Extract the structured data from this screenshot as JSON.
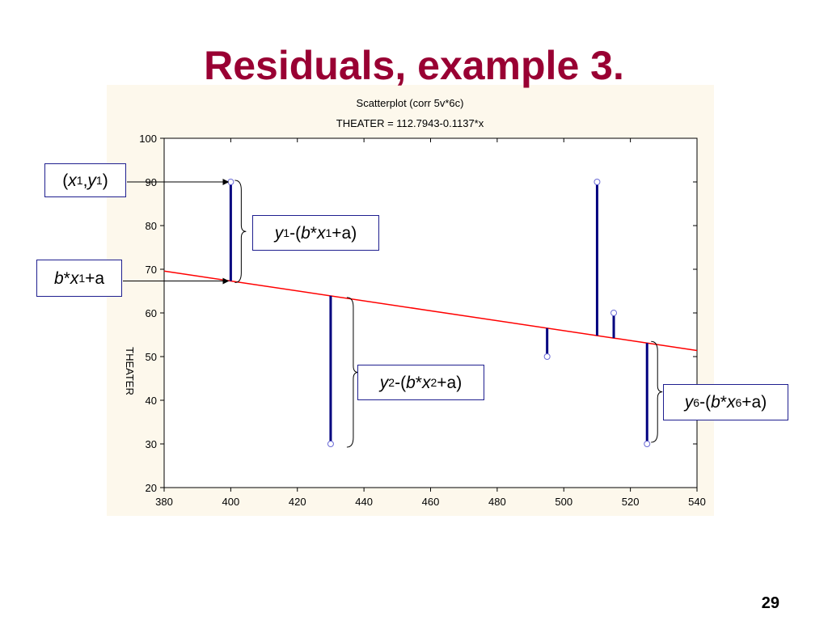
{
  "slide": {
    "title": "Residuals, example 3.",
    "page_number": "29"
  },
  "colors": {
    "title": "#990033",
    "regression_line": "#ff0000",
    "residual_bar": "#00007f",
    "panel_background": "#fdf8ec",
    "point_stroke": "#6b6bd6"
  },
  "chart_data": {
    "type": "scatter",
    "title": "Scatterplot (corr 5v*6c)",
    "subtitle": "THEATER = 112.7943-0.1137*x",
    "xlabel": "",
    "ylabel": "THEATER",
    "xlim": [
      380,
      540
    ],
    "ylim": [
      20,
      100
    ],
    "xticks": [
      "380",
      "400",
      "420",
      "440",
      "460",
      "480",
      "500",
      "520",
      "540"
    ],
    "yticks": [
      "20",
      "30",
      "40",
      "50",
      "60",
      "70",
      "80",
      "90",
      "100"
    ],
    "regression": {
      "intercept": 112.7943,
      "slope": -0.1137
    },
    "points": [
      {
        "x": 400,
        "y": 90
      },
      {
        "x": 430,
        "y": 30
      },
      {
        "x": 495,
        "y": 50
      },
      {
        "x": 510,
        "y": 90
      },
      {
        "x": 515,
        "y": 60
      },
      {
        "x": 525,
        "y": 30
      }
    ],
    "grid": false
  },
  "callouts": {
    "point_label": {
      "open": "(",
      "x": "x",
      "x_sub": "1",
      "comma": ",",
      "y": "y",
      "y_sub": "1",
      "close": ")"
    },
    "fitted_label": {
      "b": "b",
      "star": "*",
      "x": "x",
      "x_sub": "1",
      "rest": "+a"
    },
    "residual_1": {
      "y": "y",
      "y_sub": "1",
      "mid": "-(",
      "b": "b",
      "star": "*",
      "x": "x",
      "x_sub": "1",
      "rest": "+a)"
    },
    "residual_2": {
      "y": "y",
      "y_sub": "2",
      "mid": "-(",
      "b": "b",
      "star": "*",
      "x": "x",
      "x_sub": "2",
      "rest": "+a)"
    },
    "residual_6": {
      "y": "y",
      "y_sub": "6",
      "mid": "-(",
      "b": "b",
      "star": "*",
      "x": "x",
      "x_sub": "6",
      "rest": "+a)"
    }
  }
}
